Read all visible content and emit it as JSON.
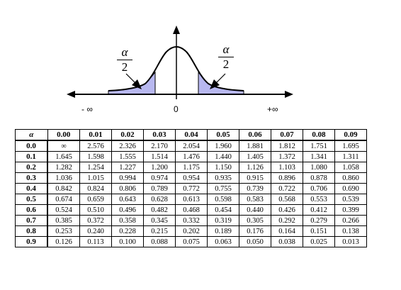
{
  "figure": {
    "left_label": "α",
    "left_denominator": "2",
    "right_label": "α",
    "right_denominator": "2",
    "axis_left": "- ∞",
    "axis_center": "0",
    "axis_right": "+∞",
    "tail_color": "#b8b8f0"
  },
  "table": {
    "corner": "α",
    "columns": [
      "0.00",
      "0.01",
      "0.02",
      "0.03",
      "0.04",
      "0.05",
      "0.06",
      "0.07",
      "0.08",
      "0.09"
    ],
    "rows": [
      {
        "label": "0.0",
        "values": [
          "∞",
          "2.576",
          "2.326",
          "2.170",
          "2.054",
          "1.960",
          "1.881",
          "1.812",
          "1.751",
          "1.695"
        ]
      },
      {
        "label": "0.1",
        "values": [
          "1.645",
          "1.598",
          "1.555",
          "1.514",
          "1.476",
          "1.440",
          "1.405",
          "1.372",
          "1.341",
          "1.311"
        ]
      },
      {
        "label": "0.2",
        "values": [
          "1.282",
          "1.254",
          "1.227",
          "1.200",
          "1.175",
          "1.150",
          "1.126",
          "1.103",
          "1.080",
          "1.058"
        ]
      },
      {
        "label": "0.3",
        "values": [
          "1.036",
          "1.015",
          "0.994",
          "0.974",
          "0.954",
          "0.935",
          "0.915",
          "0.896",
          "0.878",
          "0.860"
        ]
      },
      {
        "label": "0.4",
        "values": [
          "0.842",
          "0.824",
          "0.806",
          "0.789",
          "0.772",
          "0.755",
          "0.739",
          "0.722",
          "0.706",
          "0.690"
        ]
      },
      {
        "label": "0.5",
        "values": [
          "0.674",
          "0.659",
          "0.643",
          "0.628",
          "0.613",
          "0.598",
          "0.583",
          "0.568",
          "0.553",
          "0.539"
        ]
      },
      {
        "label": "0.6",
        "values": [
          "0.524",
          "0.510",
          "0.496",
          "0.482",
          "0.468",
          "0.454",
          "0.440",
          "0.426",
          "0.412",
          "0.399"
        ]
      },
      {
        "label": "0.7",
        "values": [
          "0.385",
          "0.372",
          "0.358",
          "0.345",
          "0.332",
          "0.319",
          "0.305",
          "0.292",
          "0.279",
          "0.266"
        ]
      },
      {
        "label": "0.8",
        "values": [
          "0.253",
          "0.240",
          "0.228",
          "0.215",
          "0.202",
          "0.189",
          "0.176",
          "0.164",
          "0.151",
          "0.138"
        ]
      },
      {
        "label": "0.9",
        "values": [
          "0.126",
          "0.113",
          "0.100",
          "0.088",
          "0.075",
          "0.063",
          "0.050",
          "0.038",
          "0.025",
          "0.013"
        ]
      }
    ]
  }
}
